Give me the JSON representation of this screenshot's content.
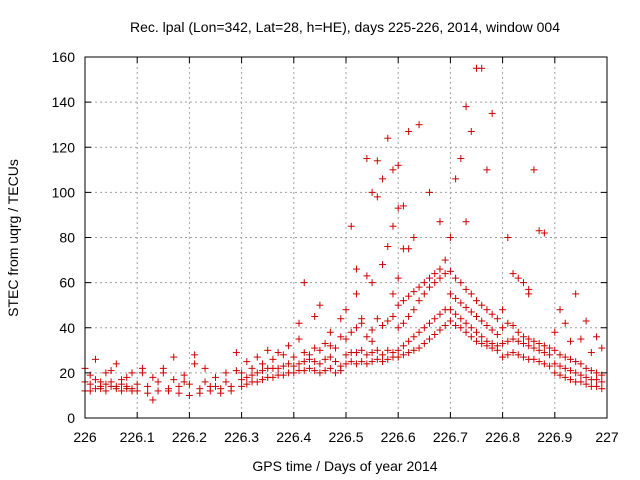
{
  "chart_data": {
    "type": "scatter",
    "title": "Rec. lpal (Lon=342, Lat=28, h=HE), days 225-226, 2014, window 004",
    "xlabel": "GPS time / Days of year 2014",
    "ylabel": "STEC from uqrg / TECUs",
    "xlim": [
      226,
      227
    ],
    "ylim": [
      0,
      160
    ],
    "xticks": [
      "226",
      "226.1",
      "226.2",
      "226.3",
      "226.4",
      "226.5",
      "226.6",
      "226.7",
      "226.8",
      "226.9",
      "227"
    ],
    "yticks": [
      "0",
      "20",
      "40",
      "60",
      "80",
      "100",
      "120",
      "140",
      "160"
    ],
    "grid": true,
    "marker": "+",
    "color": "#cc0000",
    "series": [
      {
        "name": "",
        "x": [
          226.0,
          226.01,
          226.02,
          226.03,
          226.04,
          226.05,
          226.06,
          226.07,
          226.08,
          226.09,
          226.0,
          226.01,
          226.02,
          226.03,
          226.04,
          226.05,
          226.06,
          226.07,
          226.08,
          226.09,
          226.0,
          226.02,
          226.04,
          226.06,
          226.08,
          226.01,
          226.03,
          226.05,
          226.07,
          226.09,
          226.1,
          226.12,
          226.14,
          226.16,
          226.18,
          226.2,
          226.22,
          226.24,
          226.26,
          226.28,
          226.1,
          226.12,
          226.14,
          226.16,
          226.18,
          226.2,
          226.22,
          226.24,
          226.26,
          226.28,
          226.11,
          226.13,
          226.15,
          226.17,
          226.19,
          226.21,
          226.23,
          226.25,
          226.27,
          226.29,
          226.11,
          226.15,
          226.17,
          226.19,
          226.23,
          226.21,
          226.25,
          226.27,
          226.29,
          226.13,
          226.3,
          226.31,
          226.32,
          226.33,
          226.34,
          226.35,
          226.36,
          226.37,
          226.38,
          226.39,
          226.3,
          226.31,
          226.32,
          226.33,
          226.34,
          226.35,
          226.36,
          226.37,
          226.38,
          226.39,
          226.3,
          226.32,
          226.34,
          226.36,
          226.38,
          226.31,
          226.33,
          226.35,
          226.37,
          226.39,
          226.4,
          226.41,
          226.42,
          226.43,
          226.44,
          226.45,
          226.46,
          226.47,
          226.48,
          226.49,
          226.4,
          226.41,
          226.42,
          226.43,
          226.44,
          226.45,
          226.46,
          226.47,
          226.48,
          226.49,
          226.4,
          226.42,
          226.44,
          226.46,
          226.48,
          226.41,
          226.43,
          226.45,
          226.47,
          226.49,
          226.41,
          226.44,
          226.47,
          226.49,
          226.45,
          226.42,
          226.5,
          226.51,
          226.52,
          226.53,
          226.54,
          226.55,
          226.56,
          226.57,
          226.58,
          226.59,
          226.5,
          226.51,
          226.52,
          226.53,
          226.54,
          226.55,
          226.56,
          226.57,
          226.58,
          226.59,
          226.5,
          226.51,
          226.52,
          226.53,
          226.54,
          226.55,
          226.56,
          226.57,
          226.58,
          226.59,
          226.5,
          226.52,
          226.54,
          226.55,
          226.57,
          226.58,
          226.59,
          226.59,
          226.6,
          226.56,
          226.51,
          226.52,
          226.54,
          226.55,
          226.56,
          226.58,
          226.59,
          226.57,
          226.53,
          226.55,
          226.6,
          226.61,
          226.62,
          226.63,
          226.64,
          226.65,
          226.66,
          226.67,
          226.68,
          226.69,
          226.6,
          226.61,
          226.62,
          226.63,
          226.64,
          226.65,
          226.66,
          226.67,
          226.68,
          226.69,
          226.6,
          226.61,
          226.62,
          226.63,
          226.64,
          226.65,
          226.66,
          226.67,
          226.68,
          226.69,
          226.6,
          226.61,
          226.62,
          226.63,
          226.64,
          226.65,
          226.66,
          226.67,
          226.68,
          226.69,
          226.6,
          226.61,
          226.62,
          226.63,
          226.64,
          226.6,
          226.62,
          226.66,
          226.68,
          226.61,
          226.7,
          226.71,
          226.72,
          226.73,
          226.74,
          226.75,
          226.76,
          226.77,
          226.78,
          226.79,
          226.7,
          226.71,
          226.72,
          226.73,
          226.74,
          226.75,
          226.76,
          226.77,
          226.78,
          226.79,
          226.7,
          226.71,
          226.72,
          226.73,
          226.74,
          226.75,
          226.76,
          226.77,
          226.78,
          226.79,
          226.7,
          226.71,
          226.72,
          226.73,
          226.74,
          226.75,
          226.76,
          226.77,
          226.78,
          226.79,
          226.71,
          226.72,
          226.73,
          226.74,
          226.75,
          226.76,
          226.77,
          226.78,
          226.7,
          226.73,
          226.8,
          226.81,
          226.82,
          226.83,
          226.84,
          226.85,
          226.86,
          226.87,
          226.88,
          226.89,
          226.8,
          226.81,
          226.82,
          226.83,
          226.84,
          226.85,
          226.86,
          226.87,
          226.88,
          226.89,
          226.8,
          226.81,
          226.82,
          226.83,
          226.84,
          226.85,
          226.86,
          226.87,
          226.88,
          226.89,
          226.8,
          226.82,
          226.84,
          226.85,
          226.86,
          226.87,
          226.88,
          226.81,
          226.83,
          226.85,
          226.9,
          226.91,
          226.92,
          226.93,
          226.94,
          226.95,
          226.96,
          226.97,
          226.98,
          226.99,
          226.9,
          226.91,
          226.92,
          226.93,
          226.94,
          226.95,
          226.96,
          226.97,
          226.98,
          226.99,
          226.9,
          226.91,
          226.92,
          226.93,
          226.94,
          226.95,
          226.96,
          226.97,
          226.98,
          226.99,
          226.9,
          226.92,
          226.94,
          226.96,
          226.98,
          226.91,
          226.93,
          226.95,
          226.97,
          226.99
        ],
        "y": [
          12,
          12,
          13,
          13,
          12,
          14,
          13,
          12,
          13,
          12,
          16,
          15,
          17,
          16,
          15,
          16,
          14,
          15,
          14,
          13,
          22,
          26,
          20,
          24,
          18,
          19,
          14,
          21,
          17,
          20,
          12,
          11,
          12,
          12,
          11,
          10,
          11,
          12,
          11,
          12,
          15,
          14,
          16,
          13,
          14,
          15,
          13,
          14,
          13,
          14,
          20,
          18,
          22,
          27,
          19,
          24,
          16,
          18,
          20,
          21,
          22,
          20,
          17,
          16,
          22,
          28,
          14,
          16,
          29,
          8,
          14,
          15,
          16,
          16,
          17,
          18,
          18,
          19,
          19,
          20,
          17,
          18,
          19,
          20,
          21,
          22,
          22,
          22,
          23,
          24,
          20,
          22,
          24,
          26,
          28,
          25,
          27,
          30,
          29,
          32,
          20,
          21,
          21,
          22,
          21,
          20,
          21,
          22,
          20,
          21,
          23,
          24,
          25,
          26,
          25,
          24,
          26,
          27,
          25,
          23,
          27,
          29,
          31,
          33,
          31,
          35,
          28,
          30,
          32,
          36,
          42,
          45,
          38,
          44,
          50,
          60,
          24,
          25,
          24,
          25,
          24,
          25,
          26,
          25,
          26,
          27,
          28,
          29,
          29,
          30,
          28,
          29,
          30,
          28,
          30,
          29,
          35,
          38,
          40,
          42,
          36,
          39,
          44,
          41,
          43,
          45,
          48,
          55,
          63,
          60,
          68,
          76,
          55,
          85,
          62,
          114,
          85,
          66,
          115,
          100,
          98,
          124,
          110,
          106,
          44,
          34,
          27,
          28,
          29,
          30,
          31,
          33,
          35,
          37,
          39,
          41,
          30,
          32,
          34,
          36,
          38,
          40,
          42,
          44,
          46,
          48,
          40,
          42,
          45,
          48,
          52,
          55,
          58,
          60,
          62,
          64,
          50,
          52,
          54,
          56,
          58,
          60,
          62,
          64,
          66,
          70,
          93,
          94,
          75,
          80,
          130,
          112,
          127,
          100,
          87,
          75,
          43,
          41,
          40,
          38,
          36,
          34,
          33,
          32,
          31,
          30,
          48,
          46,
          44,
          42,
          40,
          38,
          36,
          34,
          33,
          32,
          55,
          53,
          51,
          49,
          47,
          45,
          43,
          41,
          39,
          37,
          65,
          62,
          60,
          57,
          55,
          52,
          50,
          48,
          46,
          44,
          106,
          115,
          138,
          127,
          155,
          155,
          110,
          135,
          80,
          87,
          27,
          28,
          29,
          28,
          27,
          26,
          26,
          25,
          24,
          23,
          33,
          34,
          35,
          34,
          33,
          32,
          31,
          30,
          29,
          28,
          40,
          42,
          41,
          38,
          36,
          35,
          34,
          33,
          32,
          31,
          48,
          64,
          60,
          57,
          110,
          83,
          82,
          80,
          62,
          55,
          20,
          19,
          18,
          17,
          16,
          16,
          15,
          14,
          14,
          13,
          24,
          23,
          22,
          21,
          20,
          19,
          18,
          17,
          17,
          16,
          30,
          28,
          27,
          26,
          25,
          24,
          22,
          21,
          20,
          19,
          38,
          42,
          55,
          43,
          36,
          48,
          34,
          35,
          29,
          31
        ]
      }
    ]
  }
}
